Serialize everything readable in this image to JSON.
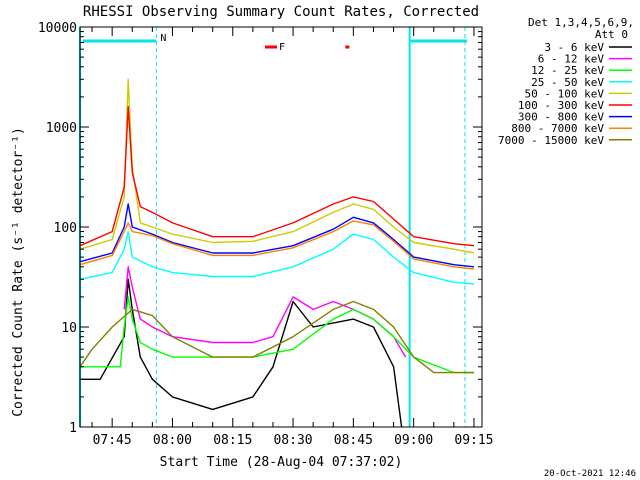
{
  "chart_data": {
    "type": "line",
    "title": "RHESSI Observing Summary Count Rates, Corrected",
    "xlabel": "Start Time (28-Aug-04 07:37:02)",
    "ylabel": "Corrected Count Rate (s⁻¹ detector⁻¹)",
    "y_scale": "log",
    "ylim": [
      1,
      10000
    ],
    "xlim": [
      "07:37",
      "09:17"
    ],
    "x_ticks": [
      "07:45",
      "08:00",
      "08:15",
      "08:30",
      "08:45",
      "09:00",
      "09:15"
    ],
    "y_ticks": [
      "1",
      "10",
      "100",
      "1000",
      "10000"
    ],
    "legend_header": [
      "Det 1,3,4,5,6,9,",
      "Att 0"
    ],
    "legend_position": "right",
    "timestamp": "20-Oct-2021 12:46",
    "annotations": {
      "night_label": "N",
      "flag_label": "F"
    },
    "series": [
      {
        "name": "3 - 6 keV",
        "color": "#000000",
        "x": [
          "07:37",
          "07:42",
          "07:48",
          "07:49",
          "07:50",
          "07:52",
          "07:55",
          "08:00",
          "08:10",
          "08:20",
          "08:25",
          "08:30",
          "08:35",
          "08:45",
          "08:50",
          "08:55",
          "08:57"
        ],
        "y": [
          3,
          3,
          8,
          30,
          15,
          5,
          3,
          2,
          1.5,
          2,
          4,
          18,
          10,
          12,
          10,
          4,
          1
        ]
      },
      {
        "name": "6 - 12 keV",
        "color": "#ff00ff",
        "x": [
          "07:48",
          "07:49",
          "07:50",
          "07:52",
          "07:55",
          "08:00",
          "08:10",
          "08:20",
          "08:25",
          "08:30",
          "08:35",
          "08:40",
          "08:45",
          "08:50",
          "08:55",
          "08:58"
        ],
        "y": [
          15,
          40,
          25,
          12,
          10,
          8,
          7,
          7,
          8,
          20,
          15,
          18,
          15,
          12,
          8,
          5
        ]
      },
      {
        "name": "12 - 25 keV",
        "color": "#00ff00",
        "x": [
          "07:37",
          "07:47",
          "07:48",
          "07:49",
          "07:50",
          "07:52",
          "07:55",
          "08:00",
          "08:10",
          "08:20",
          "08:30",
          "08:40",
          "08:45",
          "08:50",
          "08:55",
          "09:00",
          "09:10",
          "09:15"
        ],
        "y": [
          4,
          4,
          10,
          20,
          12,
          7,
          6,
          5,
          5,
          5,
          6,
          12,
          15,
          12,
          8,
          5,
          3.5,
          3.5
        ]
      },
      {
        "name": "25 - 50 keV",
        "color": "#00ffff",
        "x": [
          "07:37",
          "07:45",
          "07:48",
          "07:49",
          "07:50",
          "07:55",
          "08:00",
          "08:10",
          "08:20",
          "08:30",
          "08:40",
          "08:45",
          "08:50",
          "08:55",
          "09:00",
          "09:10",
          "09:15"
        ],
        "y": [
          30,
          35,
          60,
          90,
          50,
          40,
          35,
          32,
          32,
          40,
          60,
          85,
          75,
          50,
          35,
          28,
          27
        ]
      },
      {
        "name": "50 - 100 keV",
        "color": "#cccc00",
        "x": [
          "07:37",
          "07:45",
          "07:48",
          "07:49",
          "07:50",
          "07:52",
          "07:55",
          "08:00",
          "08:10",
          "08:20",
          "08:30",
          "08:40",
          "08:45",
          "08:50",
          "08:55",
          "09:00",
          "09:10",
          "09:15"
        ],
        "y": [
          60,
          75,
          200,
          3000,
          400,
          110,
          100,
          85,
          70,
          72,
          90,
          140,
          170,
          150,
          100,
          70,
          60,
          55
        ]
      },
      {
        "name": "100 - 300 keV",
        "color": "#ff0000",
        "x": [
          "07:37",
          "07:45",
          "07:48",
          "07:49",
          "07:50",
          "07:52",
          "07:55",
          "08:00",
          "08:10",
          "08:20",
          "08:30",
          "08:40",
          "08:45",
          "08:50",
          "08:55",
          "09:00",
          "09:10",
          "09:15"
        ],
        "y": [
          65,
          90,
          250,
          1600,
          350,
          160,
          140,
          110,
          80,
          80,
          110,
          170,
          200,
          180,
          120,
          80,
          68,
          65
        ]
      },
      {
        "name": "300 - 800 keV",
        "color": "#0000ff",
        "x": [
          "07:37",
          "07:45",
          "07:48",
          "07:49",
          "07:50",
          "07:55",
          "08:00",
          "08:10",
          "08:20",
          "08:30",
          "08:40",
          "08:45",
          "08:50",
          "08:55",
          "09:00",
          "09:10",
          "09:15"
        ],
        "y": [
          45,
          55,
          100,
          170,
          100,
          85,
          70,
          55,
          55,
          65,
          95,
          125,
          110,
          75,
          50,
          42,
          40
        ]
      },
      {
        "name": "800 - 7000 keV",
        "color": "#ff8000",
        "x": [
          "07:37",
          "07:45",
          "07:48",
          "07:49",
          "07:50",
          "07:55",
          "08:00",
          "08:10",
          "08:20",
          "08:30",
          "08:40",
          "08:45",
          "08:50",
          "08:55",
          "09:00",
          "09:10",
          "09:15"
        ],
        "y": [
          42,
          52,
          90,
          110,
          90,
          82,
          68,
          52,
          52,
          62,
          90,
          115,
          105,
          72,
          48,
          40,
          38
        ]
      },
      {
        "name": "7000 - 15000 keV",
        "color": "#808000",
        "x": [
          "07:37",
          "07:40",
          "07:45",
          "07:50",
          "07:55",
          "08:00",
          "08:10",
          "08:20",
          "08:30",
          "08:40",
          "08:45",
          "08:50",
          "08:55",
          "09:00",
          "09:05",
          "09:15"
        ],
        "y": [
          4,
          6,
          10,
          15,
          13,
          8,
          5,
          5,
          8,
          15,
          18,
          15,
          10,
          5,
          3.5,
          3.5
        ]
      }
    ]
  }
}
